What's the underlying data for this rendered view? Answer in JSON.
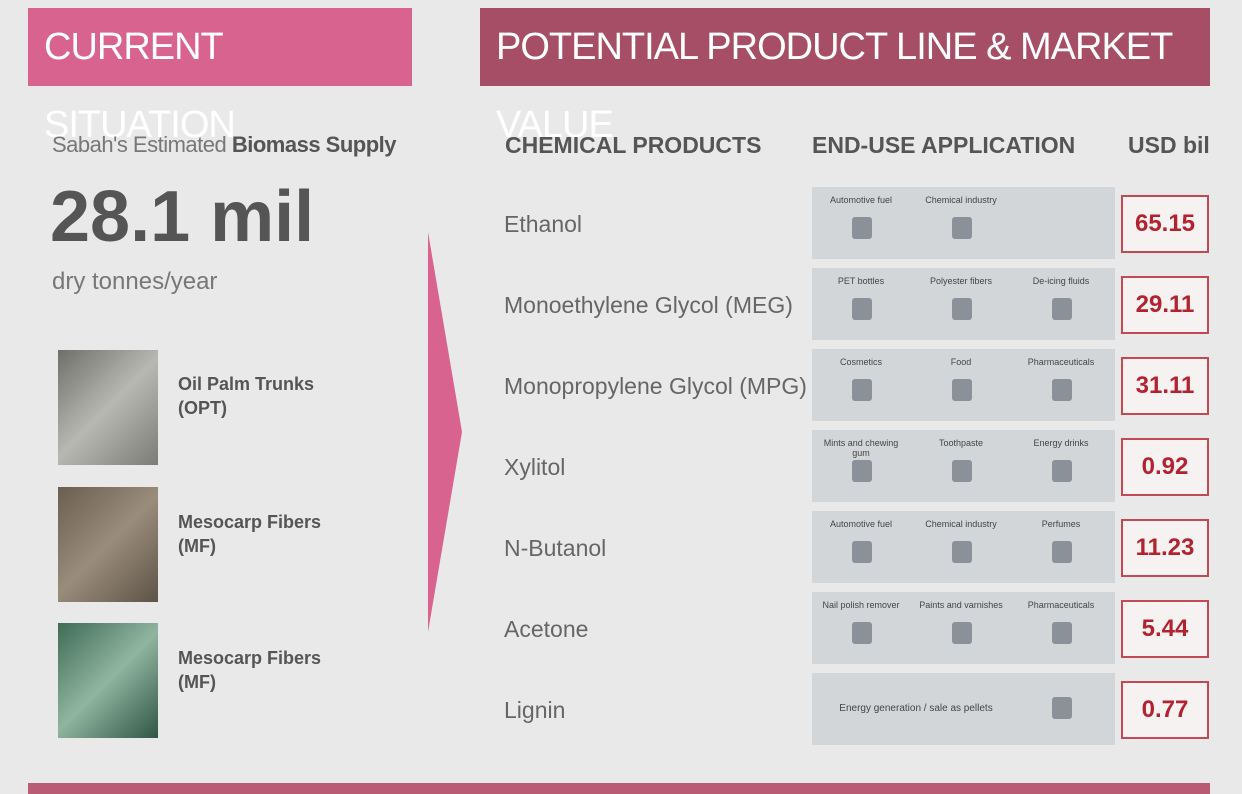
{
  "left": {
    "header": "CURRENT SITUATION",
    "supply_label": "Sabah's Estimated ",
    "supply_label_bold": "Biomass Supply",
    "supply_value": "28.1 mil",
    "supply_unit": "dry tonnes/year",
    "items": [
      {
        "name": "Oil Palm Trunks",
        "abbr": "(OPT)"
      },
      {
        "name": "Mesocarp Fibers",
        "abbr": "(MF)"
      },
      {
        "name": "Mesocarp Fibers",
        "abbr": "(MF)"
      }
    ]
  },
  "right": {
    "header": "POTENTIAL PRODUCT LINE & MARKET VALUE",
    "columns": [
      "CHEMICAL PRODUCTS",
      "END-USE APPLICATION",
      "USD bil"
    ],
    "rows": [
      {
        "product": "Ethanol",
        "applications": [
          "Automotive fuel",
          "Chemical industry"
        ],
        "value": 65.15
      },
      {
        "product": "Monoethylene Glycol (MEG)",
        "applications": [
          "PET bottles",
          "Polyester fibers",
          "De-icing fluids"
        ],
        "value": 29.11
      },
      {
        "product": "Monopropylene Glycol (MPG)",
        "applications": [
          "Cosmetics",
          "Food",
          "Pharmaceuticals"
        ],
        "value": 31.11
      },
      {
        "product": "Xylitol",
        "applications": [
          "Mints and chewing gum",
          "Toothpaste",
          "Energy drinks"
        ],
        "value": 0.92
      },
      {
        "product": "N-Butanol",
        "applications": [
          "Automotive fuel",
          "Chemical industry",
          "Perfumes"
        ],
        "value": 11.23
      },
      {
        "product": "Acetone",
        "applications": [
          "Nail polish remover",
          "Paints and varnishes",
          "Pharmaceuticals"
        ],
        "value": 5.44
      },
      {
        "product": "Lignin",
        "applications": [
          "Energy generation / sale as pellets"
        ],
        "value": 0.77
      }
    ]
  }
}
